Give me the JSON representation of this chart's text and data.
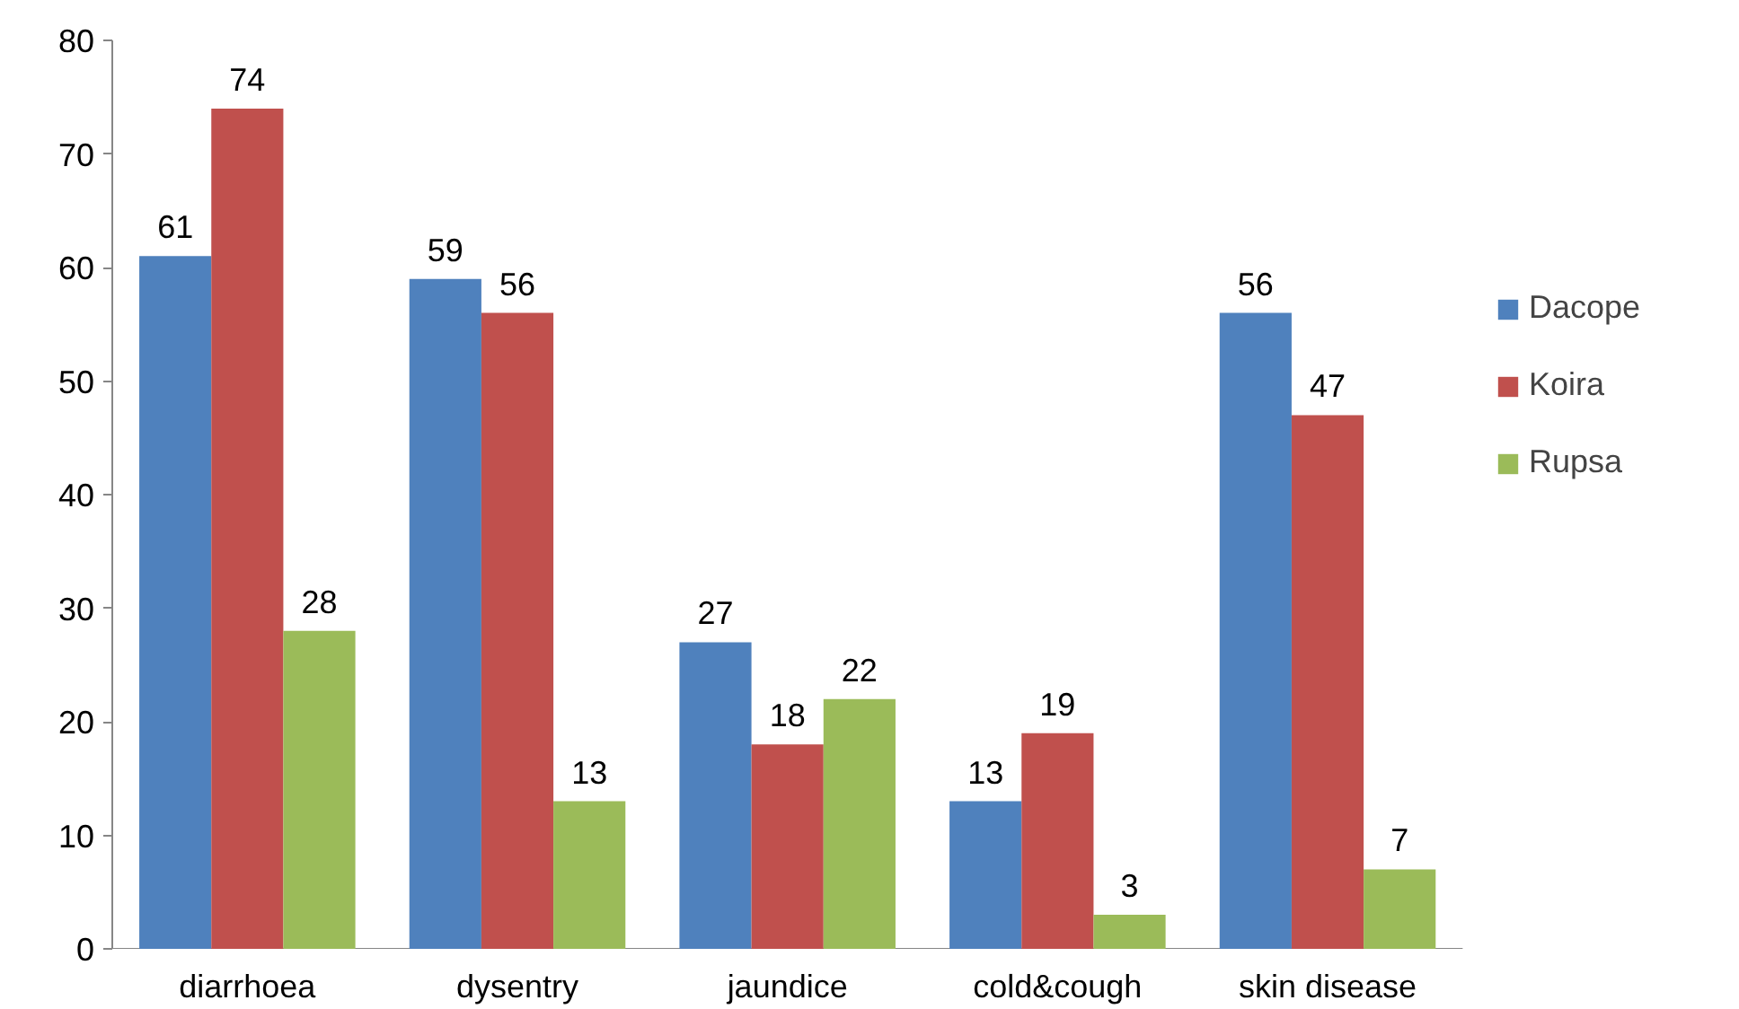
{
  "chart_data": {
    "type": "bar",
    "categories": [
      "diarrhoea",
      "dysentry",
      "jaundice",
      "cold&cough",
      "skin disease"
    ],
    "series": [
      {
        "name": "Dacope",
        "color": "#4f81bd",
        "values": [
          61,
          59,
          27,
          13,
          56
        ]
      },
      {
        "name": "Koira",
        "color": "#c0504d",
        "values": [
          74,
          56,
          18,
          19,
          47
        ]
      },
      {
        "name": "Rupsa",
        "color": "#9bbb59",
        "values": [
          28,
          13,
          22,
          3,
          7
        ]
      }
    ],
    "ylim": [
      0,
      80
    ],
    "yticks": [
      0,
      10,
      20,
      30,
      40,
      50,
      60,
      70,
      80
    ],
    "grid": false,
    "legend": "right",
    "data_labels": true
  }
}
